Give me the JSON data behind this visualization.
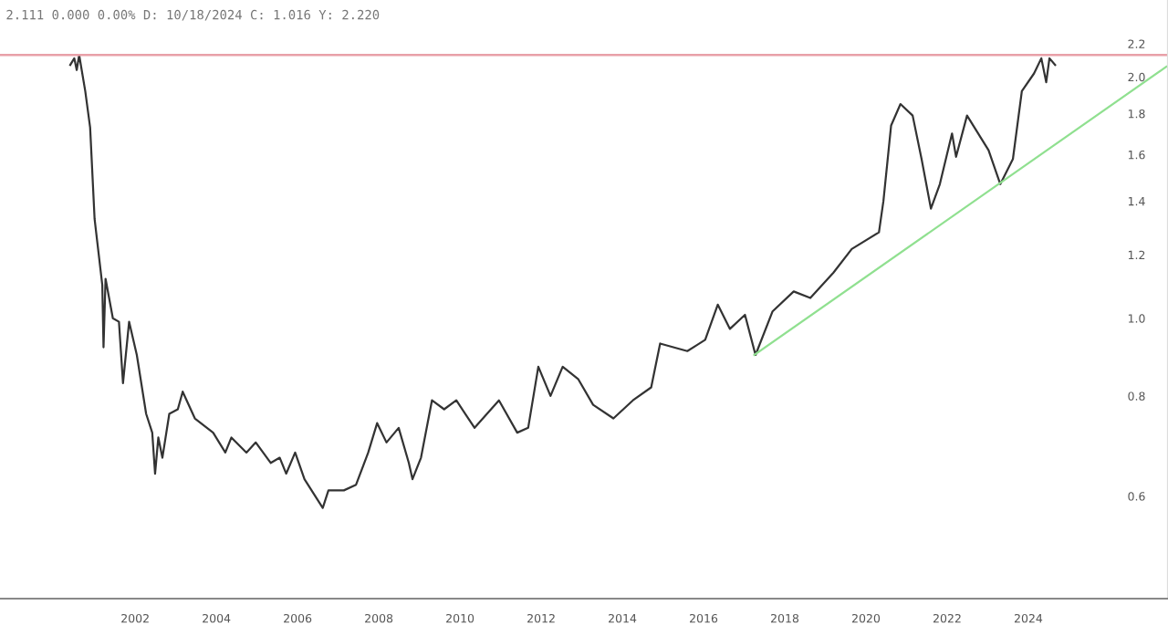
{
  "chart_data": {
    "type": "line",
    "log": "y",
    "grid": false,
    "legend": false,
    "marker": "none",
    "line_style": "solid",
    "annotations": [
      "2.111 0.000 0.00% D: 10/18/2024 C: 1.016 Y: 2.220"
    ],
    "xlim": [
      1998.67,
      2027.44
    ],
    "ylim": [
      0.447,
      2.49
    ],
    "xticks": [
      2002,
      2004,
      2006,
      2008,
      2010,
      2012,
      2014,
      2016,
      2018,
      2020,
      2022,
      2024
    ],
    "yticks": [
      {
        "value": 0.6,
        "label": "0.6"
      },
      {
        "value": 0.8,
        "label": "0.8"
      },
      {
        "value": 1.0,
        "label": "1.0"
      },
      {
        "value": 1.2,
        "label": "1.2"
      },
      {
        "value": 1.4,
        "label": "1.4"
      },
      {
        "value": 1.6,
        "label": "1.6"
      },
      {
        "value": 1.8,
        "label": "1.8"
      },
      {
        "value": 2.0,
        "label": "2.0"
      },
      {
        "value": 2.2,
        "label": "2.2"
      }
    ],
    "ref_lines": [
      {
        "axis": "y",
        "value": 2.13,
        "label": null,
        "color": "#e8a0a8"
      }
    ],
    "series": [
      {
        "color": "#333333",
        "x": [
          2000.4,
          2000.5,
          2000.56,
          2000.62,
          2000.77,
          2000.89,
          2001.0,
          2001.07,
          2001.19,
          2001.22,
          2001.27,
          2001.45,
          2001.6,
          2001.7,
          2001.85,
          2002.04,
          2002.27,
          2002.42,
          2002.49,
          2002.57,
          2002.67,
          2002.84,
          2003.05,
          2003.17,
          2003.47,
          2003.92,
          2004.22,
          2004.37,
          2004.74,
          2004.97,
          2005.34,
          2005.56,
          2005.72,
          2005.94,
          2006.17,
          2006.62,
          2006.76,
          2007.14,
          2007.44,
          2007.74,
          2007.96,
          2008.19,
          2008.49,
          2008.74,
          2008.83,
          2009.04,
          2009.31,
          2009.61,
          2009.91,
          2010.36,
          2010.96,
          2011.41,
          2011.68,
          2011.93,
          2012.23,
          2012.53,
          2012.91,
          2013.28,
          2013.78,
          2014.26,
          2014.71,
          2014.93,
          2015.6,
          2016.04,
          2016.35,
          2016.65,
          2017.02,
          2017.28,
          2017.7,
          2018.22,
          2018.63,
          2019.2,
          2019.65,
          2020.32,
          2020.43,
          2020.62,
          2020.85,
          2021.15,
          2021.37,
          2021.6,
          2021.82,
          2022.12,
          2022.22,
          2022.49,
          2023.02,
          2023.31,
          2023.62,
          2023.84,
          2024.14,
          2024.32,
          2024.44,
          2024.52,
          2024.66
        ],
        "values": [
          2.07,
          2.11,
          2.04,
          2.13,
          1.92,
          1.73,
          1.33,
          1.24,
          1.1,
          0.92,
          1.12,
          1.0,
          0.99,
          0.83,
          0.99,
          0.9,
          0.76,
          0.72,
          0.64,
          0.71,
          0.67,
          0.76,
          0.77,
          0.81,
          0.75,
          0.72,
          0.68,
          0.71,
          0.68,
          0.7,
          0.66,
          0.67,
          0.64,
          0.68,
          0.63,
          0.58,
          0.61,
          0.61,
          0.62,
          0.68,
          0.74,
          0.7,
          0.73,
          0.66,
          0.63,
          0.67,
          0.79,
          0.77,
          0.79,
          0.73,
          0.79,
          0.72,
          0.73,
          0.87,
          0.8,
          0.87,
          0.84,
          0.78,
          0.75,
          0.79,
          0.82,
          0.93,
          0.91,
          0.94,
          1.04,
          0.97,
          1.01,
          0.9,
          1.02,
          1.08,
          1.06,
          1.14,
          1.22,
          1.28,
          1.4,
          1.74,
          1.85,
          1.79,
          1.58,
          1.37,
          1.47,
          1.7,
          1.59,
          1.79,
          1.62,
          1.47,
          1.58,
          1.92,
          2.02,
          2.11,
          1.97,
          2.11,
          2.07
        ]
      },
      {
        "type": "line",
        "color": "#90e090",
        "x": [
          2017.25,
          2027.4
        ],
        "values": [
          0.9,
          2.06
        ]
      }
    ]
  }
}
